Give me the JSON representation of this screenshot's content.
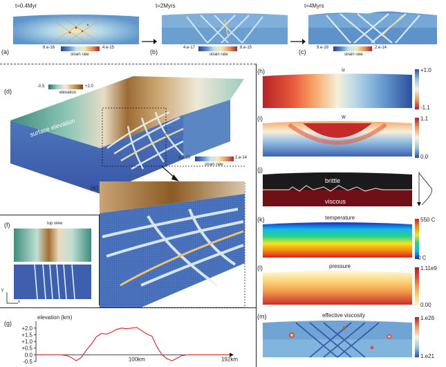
{
  "top_row": {
    "panels": [
      {
        "label": "(a)",
        "time": "t=0.4Myr",
        "cb_min": "8.e-16",
        "cb_max": "4.e-15",
        "cb_title": "strain rate"
      },
      {
        "label": "(b)",
        "time": "t=2Myrs",
        "cb_min": "4.e-17",
        "cb_max": "8.e-15",
        "cb_title": "strain rate"
      },
      {
        "label": "(c)",
        "time": "t=4Myrs",
        "cb_min": "9.e-19",
        "cb_max": "2.e-14",
        "cb_title": "strain rate"
      }
    ]
  },
  "panel_d": {
    "label": "(d)",
    "elev_cb_min": "-0.5",
    "elev_cb_max": "+2.0",
    "elev_cb_title": "elevation",
    "surface_label": "surface elevation",
    "strain_label": "strain rate",
    "strain_cb_min": "9.e-19",
    "strain_cb_max": "2.e-14",
    "strain_cb_title": "strain rate"
  },
  "panel_e": {
    "label": "(e)"
  },
  "panel_f": {
    "label": "(f)",
    "title": "top view",
    "axis_y": "y",
    "axis_x": "x"
  },
  "panel_g": {
    "label": "(g)"
  },
  "right_panels": {
    "h": {
      "label": "(h)",
      "title": "u",
      "cb_top": "+1.0",
      "cb_bottom": "-1.1"
    },
    "i": {
      "label": "(i)",
      "title": "w",
      "cb_top": "1.1",
      "cb_bottom": "0.0"
    },
    "j": {
      "label": "(j)",
      "upper": "brittle",
      "lower": "viscous"
    },
    "k": {
      "label": "(k)",
      "title": "temperature",
      "cb_top": "550 C",
      "cb_bottom": "0 C"
    },
    "l": {
      "label": "(l)",
      "title": "pressure",
      "cb_top": "1.11e9",
      "cb_bottom": "0.00"
    },
    "m": {
      "label": "(m)",
      "title": "effective viscosity",
      "cb_top": "1.e26",
      "cb_bottom": "1.e21"
    }
  },
  "chart_data": {
    "type": "line",
    "title": "elevation (km)",
    "xlabel": "",
    "ylabel": "",
    "x_tick_labels": [
      "100km",
      "192km"
    ],
    "y_tick_labels": [
      "+2.0",
      "+1.5",
      "+1.0",
      "+0.5",
      "0.0",
      "-0.5"
    ],
    "ylim": [
      -0.5,
      2.3
    ],
    "xlim": [
      0,
      192
    ],
    "series": [
      {
        "color": "#e0201e",
        "x": [
          0,
          5,
          10,
          15,
          20,
          25,
          30,
          35,
          40,
          45,
          50,
          55,
          60,
          65,
          70,
          75,
          80,
          85,
          90,
          95,
          100,
          105,
          110,
          115,
          120,
          125,
          130,
          135,
          140,
          145,
          150,
          155,
          160,
          165,
          170,
          175,
          180,
          185,
          190,
          192
        ],
        "y": [
          0.0,
          0.0,
          0.0,
          0.0,
          0.0,
          0.0,
          -0.05,
          -0.2,
          -0.45,
          -0.2,
          0.35,
          0.8,
          1.35,
          1.6,
          1.55,
          1.7,
          1.9,
          2.0,
          1.95,
          2.0,
          2.05,
          1.8,
          1.55,
          1.4,
          0.6,
          0.0,
          -0.3,
          -0.45,
          -0.25,
          -0.05,
          0.0,
          0.0,
          0.0,
          0.0,
          0.0,
          0.0,
          0.0,
          0.0,
          0.0,
          0.0
        ]
      }
    ]
  }
}
